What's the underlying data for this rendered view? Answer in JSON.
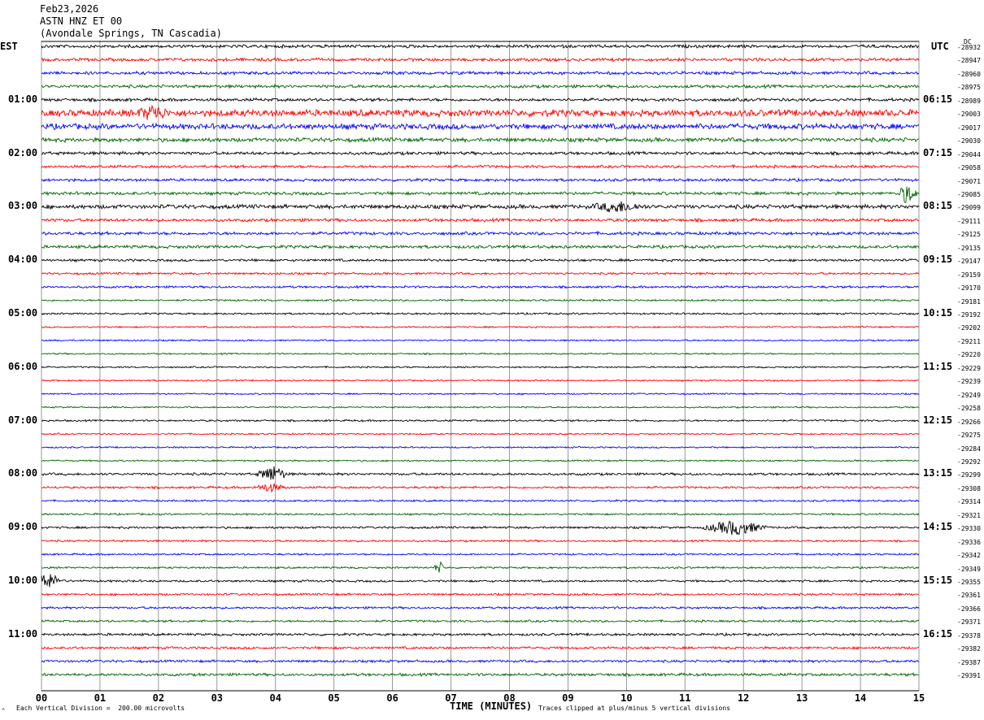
{
  "header": {
    "date": "Feb23,2026",
    "station": "ASTN HNZ ET 00",
    "location": "(Avondale Springs, TN Cascadia)"
  },
  "corner_left": "EST",
  "corner_right": "UTC",
  "footer": {
    "xlabel": "TIME (MINUTES)",
    "scale_note": "Each Vertical Division =  200.00 microvolts",
    "clip_note": "Traces clipped at plus/minus 5 vertical divisions",
    "corner_mark": "^"
  },
  "colors": {
    "trace_cycle": [
      "#000000",
      "#ff0000",
      "#0000ff",
      "#006400"
    ],
    "grid": "#808080"
  },
  "chart_data": {
    "type": "line",
    "title": "",
    "xlabel": "TIME (MINUTES)",
    "xlim": [
      0,
      15
    ],
    "x_ticks": [
      "00",
      "01",
      "02",
      "03",
      "04",
      "05",
      "06",
      "07",
      "08",
      "09",
      "10",
      "11",
      "12",
      "13",
      "14",
      "15"
    ],
    "left_time_labels": [
      {
        "row": 4,
        "label": "01:00"
      },
      {
        "row": 8,
        "label": "02:00"
      },
      {
        "row": 12,
        "label": "03:00"
      },
      {
        "row": 16,
        "label": "04:00"
      },
      {
        "row": 20,
        "label": "05:00"
      },
      {
        "row": 24,
        "label": "06:00"
      },
      {
        "row": 28,
        "label": "07:00"
      },
      {
        "row": 32,
        "label": "08:00"
      },
      {
        "row": 36,
        "label": "09:00"
      },
      {
        "row": 40,
        "label": "10:00"
      },
      {
        "row": 44,
        "label": "11:00"
      }
    ],
    "right_time_labels": [
      {
        "row": 4,
        "label": "06:15"
      },
      {
        "row": 8,
        "label": "07:15"
      },
      {
        "row": 12,
        "label": "08:15"
      },
      {
        "row": 16,
        "label": "09:15"
      },
      {
        "row": 20,
        "label": "10:15"
      },
      {
        "row": 24,
        "label": "11:15"
      },
      {
        "row": 28,
        "label": "12:15"
      },
      {
        "row": 32,
        "label": "13:15"
      },
      {
        "row": 36,
        "label": "14:15"
      },
      {
        "row": 40,
        "label": "15:15"
      },
      {
        "row": 44,
        "label": "16:15"
      }
    ],
    "dc_label": "DC",
    "trace_offsets": [
      "-28932",
      "-28947",
      "-28960",
      "-28975",
      "-28989",
      "-29003",
      "-29017",
      "-29030",
      "-29044",
      "-29058",
      "-29071",
      "-29085",
      "-29099",
      "-29111",
      "-29125",
      "-29135",
      "-29147",
      "-29159",
      "-29170",
      "-29181",
      "-29192",
      "-29202",
      "-29211",
      "-29220",
      "-29229",
      "-29239",
      "-29249",
      "-29258",
      "-29266",
      "-29275",
      "-29284",
      "-29292",
      "-29299",
      "-29308",
      "-29314",
      "-29321",
      "-29330",
      "-29336",
      "-29342",
      "-29349",
      "-29355",
      "-29361",
      "-29366",
      "-29371",
      "-29378",
      "-29382",
      "-29387",
      "-29391"
    ],
    "trace_amplitude": [
      1.0,
      1.0,
      1.0,
      1.0,
      1.0,
      2.2,
      1.8,
      1.3,
      1.0,
      0.9,
      0.9,
      1.0,
      1.3,
      1.0,
      1.0,
      1.0,
      0.8,
      0.7,
      0.7,
      0.6,
      0.6,
      0.5,
      0.5,
      0.5,
      0.5,
      0.5,
      0.5,
      0.5,
      0.6,
      0.5,
      0.5,
      0.5,
      0.8,
      0.7,
      0.6,
      0.6,
      0.7,
      0.6,
      0.6,
      0.6,
      0.7,
      0.7,
      0.7,
      0.7,
      0.8,
      0.8,
      0.8,
      0.9
    ],
    "events": [
      {
        "row": 5,
        "minute": 1.9,
        "amp": 8,
        "len": 0.3
      },
      {
        "row": 11,
        "minute": 14.8,
        "amp": 12,
        "len": 0.2
      },
      {
        "row": 12,
        "minute": 9.85,
        "amp": 6,
        "len": 0.5
      },
      {
        "row": 32,
        "minute": 3.95,
        "amp": 10,
        "len": 0.3
      },
      {
        "row": 33,
        "minute": 3.9,
        "amp": 5,
        "len": 0.3
      },
      {
        "row": 36,
        "minute": 11.85,
        "amp": 9,
        "len": 0.6
      },
      {
        "row": 39,
        "minute": 6.8,
        "amp": 8,
        "len": 0.1
      },
      {
        "row": 40,
        "minute": 0.1,
        "amp": 10,
        "len": 0.3
      }
    ]
  }
}
